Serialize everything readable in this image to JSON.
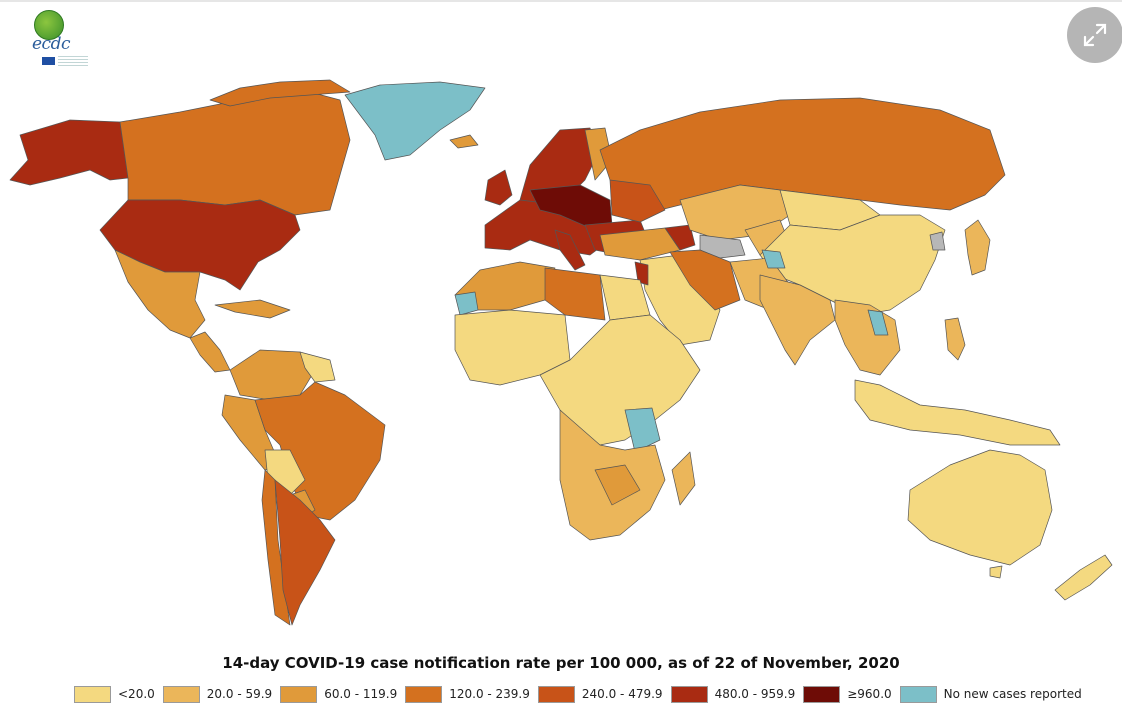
{
  "logo": {
    "text": "ecdc",
    "icon": "ecdc-globe-logo"
  },
  "expand_button": {
    "icon": "expand-arrows-icon"
  },
  "map": {
    "title": "14-day COVID-19 case notification rate per 100 000,  as of 22 of November, 2020",
    "colors": {
      "lt20": "#f4d980",
      "c20": "#ebb65a",
      "c60": "#e09a3a",
      "c120": "#d4711f",
      "c240": "#c85318",
      "c480": "#a92b12",
      "c960": "#6e0c06",
      "none": "#7cbfc8",
      "gray": "#b7b7b7",
      "ocean": "#ffffff",
      "border": "#555555"
    },
    "legend": [
      {
        "label": "<20.0",
        "color": "#f4d980"
      },
      {
        "label": "20.0 - 59.9",
        "color": "#ebb65a"
      },
      {
        "label": "60.0 - 119.9",
        "color": "#e09a3a"
      },
      {
        "label": "120.0 - 239.9",
        "color": "#d4711f"
      },
      {
        "label": "240.0 - 479.9",
        "color": "#c85318"
      },
      {
        "label": "480.0 - 959.9",
        "color": "#a92b12"
      },
      {
        "label": "≥960.0",
        "color": "#6e0c06"
      },
      {
        "label": "No new cases reported",
        "color": "#7cbfc8"
      }
    ]
  }
}
